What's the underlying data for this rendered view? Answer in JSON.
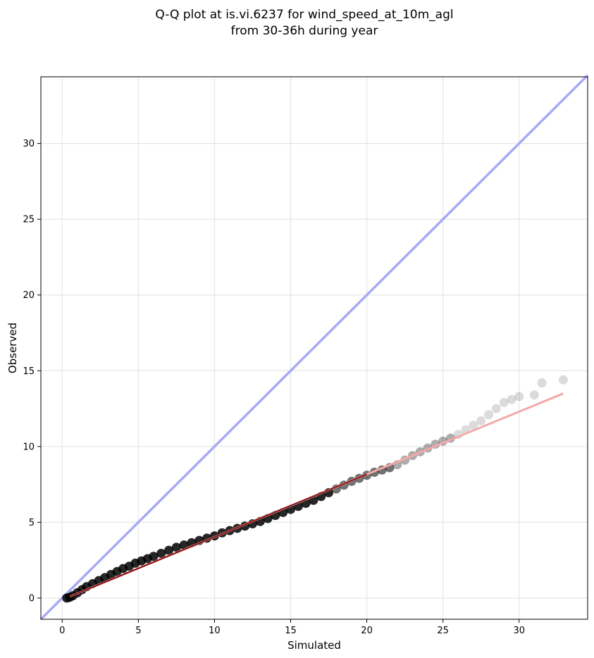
{
  "chart_data": {
    "type": "scatter",
    "title": "Q-Q plot at is.vi.6237 for wind_speed_at_10m_agl",
    "subtitle": "from 30-36h during year",
    "xlabel": "Simulated",
    "ylabel": "Observed",
    "xlim": [
      -1.4,
      34.5
    ],
    "ylim": [
      -1.4,
      34.4
    ],
    "x_ticks": [
      0,
      5,
      10,
      15,
      20,
      25,
      30
    ],
    "y_ticks": [
      0,
      5,
      10,
      15,
      20,
      25,
      30
    ],
    "grid": true,
    "identity_line": {
      "from": [
        -1.4,
        -1.4
      ],
      "to": [
        34.5,
        34.5
      ],
      "color": "#a8aaf5"
    },
    "fit_line": {
      "from": [
        0.5,
        0.1
      ],
      "to": [
        32.9,
        13.5
      ],
      "color": "#f5a8a8"
    },
    "points": {
      "color": "#000000",
      "x": [
        0.3,
        0.5,
        0.7,
        1.0,
        1.3,
        1.6,
        2.0,
        2.4,
        2.8,
        3.2,
        3.6,
        4.0,
        4.4,
        4.8,
        5.2,
        5.6,
        6.0,
        6.5,
        7.0,
        7.5,
        8.0,
        8.5,
        9.0,
        9.5,
        10.0,
        10.5,
        11.0,
        11.5,
        12.0,
        12.5,
        13.0,
        13.5,
        14.0,
        14.5,
        15.0,
        15.5,
        16.0,
        16.5,
        17.0,
        17.5,
        18.0,
        18.5,
        19.0,
        19.5,
        20.0,
        20.5,
        21.0,
        21.5,
        22.0,
        22.5,
        23.0,
        23.5,
        24.0,
        24.5,
        25.0,
        25.5,
        26.0,
        26.5,
        27.0,
        27.5,
        28.0,
        28.5,
        29.0,
        29.5,
        30.0,
        31.0,
        31.5,
        32.9
      ],
      "y": [
        0.0,
        0.05,
        0.15,
        0.35,
        0.55,
        0.75,
        0.95,
        1.15,
        1.35,
        1.55,
        1.75,
        1.95,
        2.1,
        2.3,
        2.45,
        2.6,
        2.75,
        2.95,
        3.15,
        3.35,
        3.5,
        3.65,
        3.8,
        3.95,
        4.1,
        4.3,
        4.45,
        4.6,
        4.75,
        4.9,
        5.05,
        5.25,
        5.45,
        5.65,
        5.85,
        6.05,
        6.25,
        6.45,
        6.7,
        6.95,
        7.2,
        7.45,
        7.7,
        7.9,
        8.1,
        8.3,
        8.45,
        8.6,
        8.8,
        9.1,
        9.4,
        9.65,
        9.9,
        10.15,
        10.35,
        10.55,
        10.8,
        11.1,
        11.4,
        11.7,
        12.1,
        12.5,
        12.9,
        13.1,
        13.3,
        13.4,
        14.2,
        14.4
      ]
    }
  }
}
